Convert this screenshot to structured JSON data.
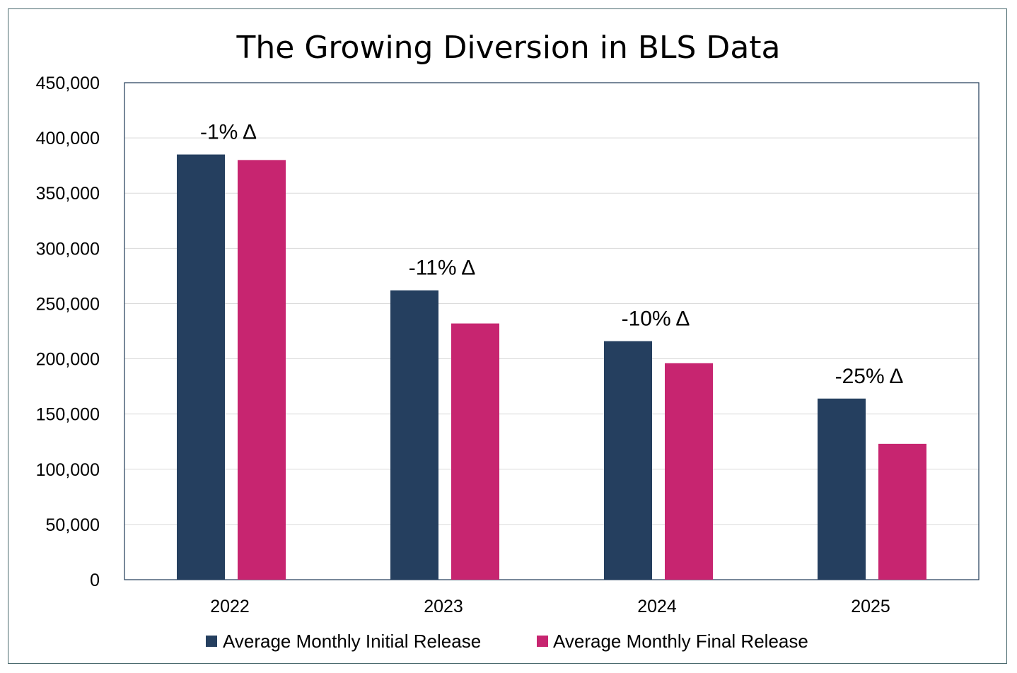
{
  "chart_data": {
    "type": "bar",
    "title": "The Growing Diversion in BLS Data",
    "xlabel": "",
    "ylabel": "",
    "categories": [
      "2022",
      "2023",
      "2024",
      "2025"
    ],
    "series": [
      {
        "name": "Average Monthly Initial Release",
        "color": "#253f5f",
        "values": [
          385000,
          262000,
          216000,
          164000
        ]
      },
      {
        "name": "Average Monthly Final Release",
        "color": "#c72570",
        "values": [
          380000,
          232000,
          196000,
          123000
        ]
      }
    ],
    "annotations": [
      "-1% Δ",
      "-11% Δ",
      "-10% Δ",
      "-25% Δ"
    ],
    "ylim": [
      0,
      450000
    ],
    "yticks": [
      0,
      50000,
      100000,
      150000,
      200000,
      250000,
      300000,
      350000,
      400000,
      450000
    ],
    "ytick_labels": [
      "0",
      "50,000",
      "100,000",
      "150,000",
      "200,000",
      "250,000",
      "300,000",
      "350,000",
      "400,000",
      "450,000"
    ],
    "grid": true,
    "legend_position": "bottom"
  }
}
